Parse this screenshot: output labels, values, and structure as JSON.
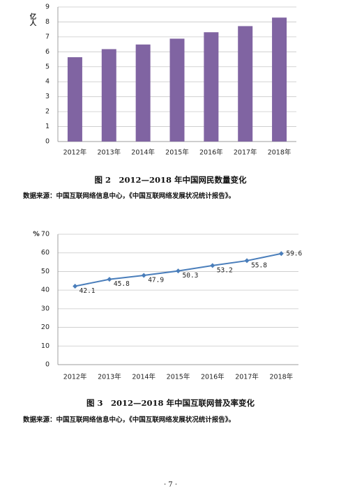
{
  "chart_data": [
    {
      "type": "bar",
      "y_label": "亿人",
      "categories": [
        "2012年",
        "2013年",
        "2014年",
        "2015年",
        "2016年",
        "2017年",
        "2018年"
      ],
      "values": [
        5.64,
        6.18,
        6.49,
        6.88,
        7.31,
        7.72,
        8.29
      ],
      "color": "#8064a2",
      "ylim": [
        0,
        9
      ],
      "yticks": [
        0,
        1,
        2,
        3,
        4,
        5,
        6,
        7,
        8,
        9
      ],
      "grid": true
    },
    {
      "type": "line",
      "y_label": "%",
      "categories": [
        "2012年",
        "2013年",
        "2014年",
        "2015年",
        "2016年",
        "2017年",
        "2018年"
      ],
      "values": [
        42.1,
        45.8,
        47.9,
        50.3,
        53.2,
        55.8,
        59.6
      ],
      "color": "#4a7ebb",
      "ylim": [
        0,
        70
      ],
      "yticks": [
        0,
        10,
        20,
        30,
        40,
        50,
        60,
        70
      ],
      "grid": true
    }
  ],
  "captions": [
    "图 2　2012—2018 年中国网民数量变化",
    "图 3　2012—2018 年中国互联网普及率变化"
  ],
  "sources": [
    "数据来源：中国互联网络信息中心，《中国互联网络发展状况统计报告》。",
    "数据来源：中国互联网络信息中心，《中国互联网络发展状况统计报告》。"
  ],
  "page_number": "· 7 ·"
}
